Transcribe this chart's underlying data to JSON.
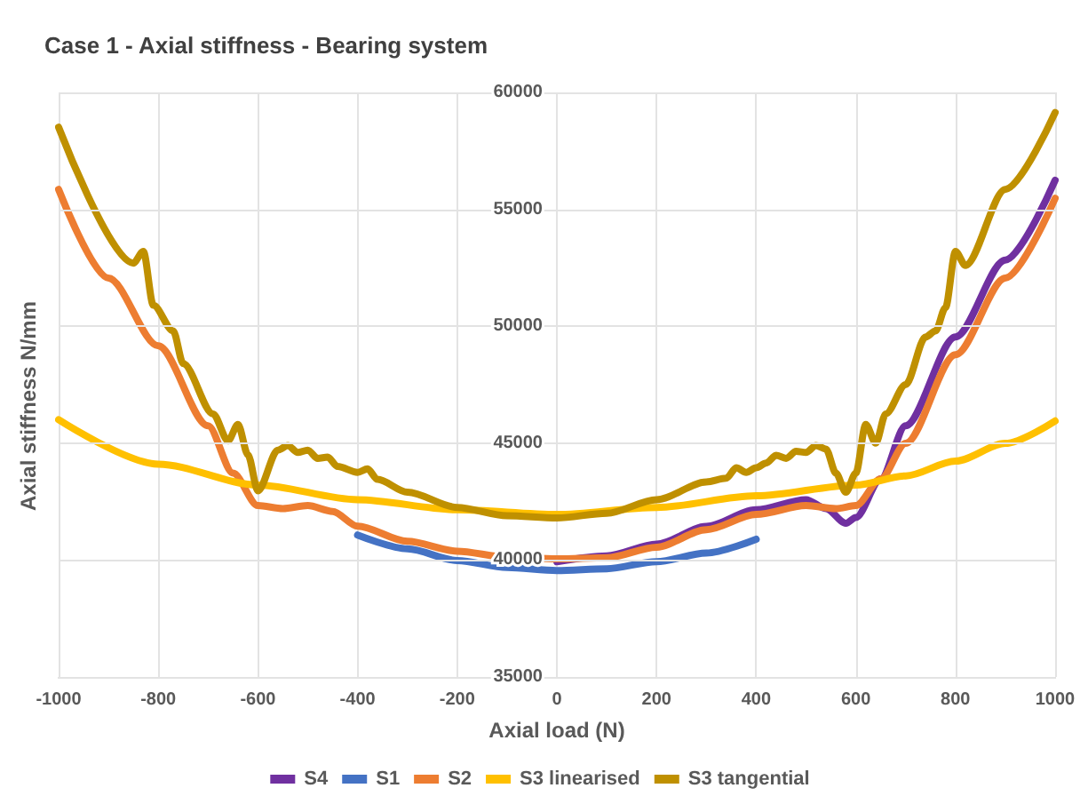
{
  "chart_data": {
    "type": "line",
    "title": "Case 1 - Axial stiffness - Bearing system",
    "xlabel": "Axial load (N)",
    "ylabel": "Axial stiffness N/mm",
    "xlim": [
      -1000,
      1000
    ],
    "xticks": [
      -1000,
      -800,
      -600,
      -400,
      -200,
      0,
      200,
      400,
      600,
      800,
      1000
    ],
    "ylim": [
      35000,
      60000
    ],
    "yticks": [
      35000,
      40000,
      45000,
      50000,
      55000,
      60000
    ],
    "grid": true,
    "legend": "bottom",
    "marker": "none",
    "line_style": "solid",
    "series": [
      {
        "name": "S4",
        "color": "#7030a0",
        "x": [
          0,
          100,
          200,
          300,
          400,
          500,
          540,
          580,
          600,
          650,
          700,
          800,
          900,
          1000
        ],
        "values": [
          39930,
          40180,
          40680,
          41440,
          42150,
          42580,
          42200,
          41570,
          41820,
          43470,
          45740,
          49540,
          52830,
          56240
        ]
      },
      {
        "name": "S1",
        "color": "#4472c4",
        "x": [
          -400,
          -300,
          -200,
          -100,
          0,
          100,
          200,
          300,
          400
        ],
        "values": [
          41070,
          40480,
          39980,
          39680,
          39550,
          39630,
          39930,
          40300,
          40890
        ]
      },
      {
        "name": "S2",
        "color": "#ed7d31",
        "x": [
          -1000,
          -900,
          -800,
          -700,
          -650,
          -600,
          -550,
          -500,
          -450,
          -400,
          -300,
          -200,
          -100,
          0,
          100,
          200,
          300,
          400,
          500,
          560,
          600,
          650,
          700,
          800,
          900,
          1000
        ],
        "values": [
          55850,
          52060,
          49160,
          45740,
          43720,
          42330,
          42200,
          42330,
          42080,
          41450,
          40800,
          40380,
          40130,
          40050,
          40100,
          40550,
          41300,
          41950,
          42330,
          42200,
          42330,
          43470,
          44990,
          48780,
          52060,
          55470
        ]
      },
      {
        "name": "S3 linearised",
        "color": "#ffc000",
        "x": [
          -1000,
          -800,
          -600,
          -400,
          -200,
          0,
          200,
          400,
          600,
          700,
          800,
          900,
          1000
        ],
        "values": [
          46000,
          44100,
          43210,
          42580,
          42150,
          41950,
          42250,
          42750,
          43210,
          43600,
          44230,
          44990,
          45950
        ]
      },
      {
        "name": "S3 tangential",
        "color": "#bf9000",
        "x": [
          -1000,
          -850,
          -830,
          -810,
          -770,
          -750,
          -690,
          -660,
          -640,
          -620,
          -600,
          -560,
          -540,
          -520,
          -500,
          -480,
          -460,
          -440,
          -400,
          -380,
          -360,
          -300,
          -200,
          -100,
          0,
          100,
          200,
          300,
          340,
          360,
          380,
          400,
          420,
          440,
          460,
          480,
          500,
          520,
          540,
          560,
          580,
          600,
          620,
          640,
          660,
          700,
          740,
          760,
          780,
          800,
          820,
          900,
          1000
        ],
        "values": [
          58510,
          52700,
          53200,
          50900,
          49800,
          48400,
          46250,
          45100,
          45800,
          44500,
          42960,
          44700,
          44900,
          44600,
          44700,
          44350,
          44400,
          44000,
          43750,
          43900,
          43450,
          42900,
          42250,
          41900,
          41800,
          42000,
          42580,
          43340,
          43500,
          43950,
          43750,
          43950,
          44150,
          44480,
          44350,
          44650,
          44600,
          44900,
          44750,
          43720,
          42900,
          43720,
          45800,
          45000,
          46250,
          47500,
          49540,
          49800,
          50800,
          53200,
          52600,
          55850,
          59140
        ]
      }
    ]
  }
}
